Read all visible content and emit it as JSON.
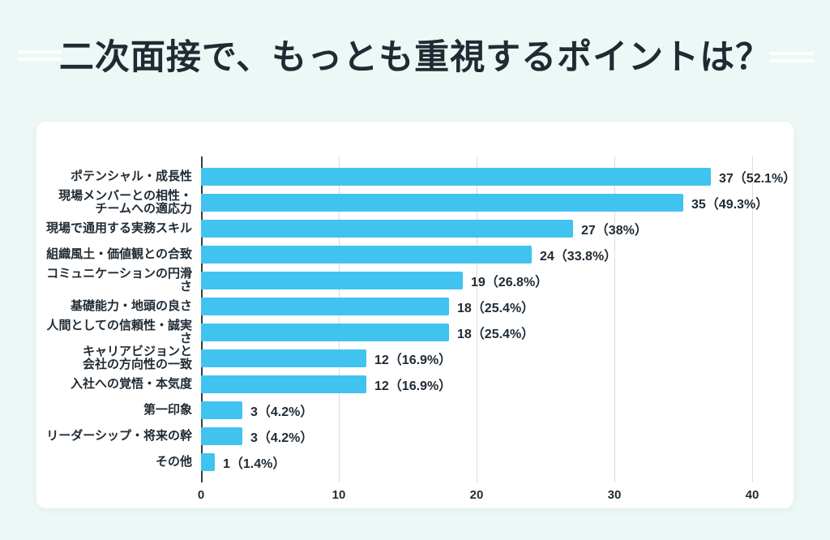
{
  "page": {
    "background": "#EDF7F6",
    "card_background": "#FFFFFF"
  },
  "header": {
    "title": "二次面接で、もっとも重視するポイントは？"
  },
  "chart_data": {
    "type": "bar",
    "orientation": "horizontal",
    "title": "二次面接で、もっとも重視するポイントは？",
    "categories": [
      "ポテンシャル・成長性",
      "現場メンバーとの相性・\nチームへの適応力",
      "現場で通用する実務スキル",
      "組織風土・価値観との合致",
      "コミュニケーションの円滑さ",
      "基礎能力・地頭の良さ",
      "人間としての信頼性・誠実さ",
      "キャリアビジョンと\n会社の方向性の一致",
      "入社への覚悟・本気度",
      "第一印象",
      "リーダーシップ・将来の幹",
      "その他"
    ],
    "values": [
      37,
      35,
      27,
      24,
      19,
      18,
      18,
      12,
      12,
      3,
      3,
      1
    ],
    "value_labels": [
      "37（52.1%）",
      "35（49.3%）",
      "27（38%）",
      "24（33.8%）",
      "19（26.8%）",
      "18（25.4%）",
      "18（25.4%）",
      "12（16.9%）",
      "12（16.9%）",
      "3（4.2%）",
      "3（4.2%）",
      "1（1.4%）"
    ],
    "xlabel": "",
    "ylabel": "",
    "xlim": [
      0,
      40
    ],
    "xticks": [
      0,
      10,
      20,
      30,
      40
    ],
    "bar_color": "#41C3F0",
    "gridline_color": "#DCDCDC",
    "axis_color": "#3B3B3B",
    "grid": true,
    "legend": false
  }
}
